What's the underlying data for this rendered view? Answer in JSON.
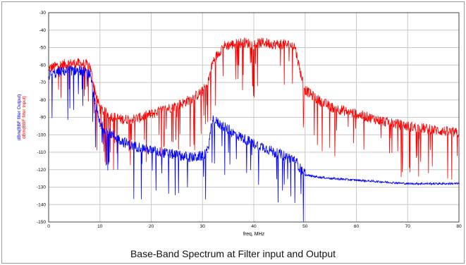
{
  "caption": "Base-Band Spectrum at Filter input and Output",
  "chart_data": {
    "type": "line",
    "title": "Base-Band Spectrum at Filter input and Output",
    "xlabel": "freq, MHz",
    "ylabel_lines": [
      "dBm(BBF filter Output)",
      "dBm(BBF filter Input)"
    ],
    "xlim": [
      0,
      80
    ],
    "ylim": [
      -150,
      -30
    ],
    "xticks": [
      0,
      10,
      20,
      30,
      40,
      50,
      60,
      70,
      80
    ],
    "yticks": [
      -30,
      -40,
      -50,
      -60,
      -70,
      -80,
      -90,
      -100,
      -110,
      -120,
      -130,
      -140,
      -150
    ],
    "grid": true,
    "series": [
      {
        "name": "dBm(BBF filter Input)",
        "color": "#ff0000",
        "x": [
          0,
          2,
          4,
          6,
          8,
          9,
          10,
          12,
          14,
          16,
          18,
          20,
          22,
          24,
          26,
          28,
          30,
          31,
          32,
          34,
          36,
          38,
          40,
          42,
          44,
          46,
          48,
          49,
          50,
          52,
          55,
          60,
          65,
          70,
          75,
          80
        ],
        "y": [
          -63,
          -61,
          -60,
          -60,
          -61,
          -75,
          -86,
          -90,
          -92,
          -92,
          -91,
          -89,
          -87,
          -85,
          -83,
          -80,
          -76,
          -72,
          -59,
          -50,
          -49,
          -48,
          -49,
          -48,
          -49,
          -49,
          -50,
          -64,
          -75,
          -80,
          -85,
          -89,
          -93,
          -96,
          -98,
          -100
        ]
      },
      {
        "name": "dBm(BBF filter Output)",
        "color": "#0000ff",
        "x": [
          0,
          2,
          4,
          6,
          8,
          9,
          10,
          12,
          14,
          16,
          18,
          20,
          22,
          24,
          26,
          28,
          30,
          31,
          32,
          34,
          36,
          38,
          40,
          42,
          44,
          46,
          48,
          49,
          50,
          52,
          55,
          60,
          65,
          70,
          75,
          80
        ],
        "y": [
          -67,
          -65,
          -64,
          -64,
          -66,
          -82,
          -95,
          -100,
          -104,
          -107,
          -108,
          -110,
          -111,
          -112,
          -113,
          -114,
          -113,
          -110,
          -92,
          -96,
          -100,
          -103,
          -106,
          -108,
          -111,
          -113,
          -115,
          -120,
          -123,
          -124,
          -125,
          -126,
          -127,
          -128,
          -128,
          -128
        ]
      }
    ]
  }
}
